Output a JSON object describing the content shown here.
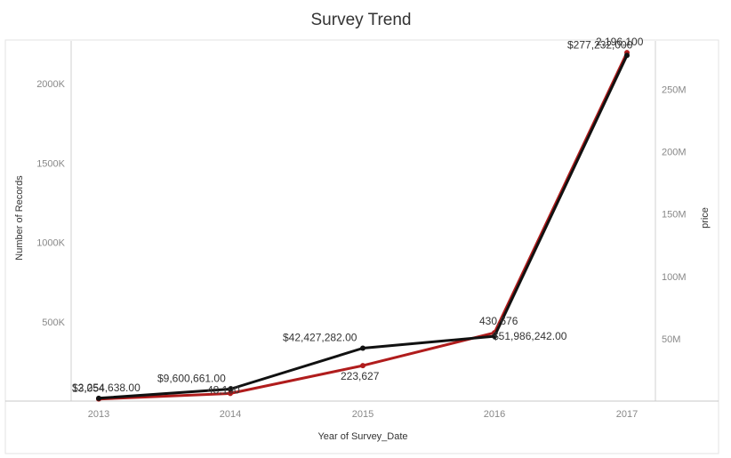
{
  "chart_data": {
    "type": "line",
    "title": "Survey Trend",
    "xlabel": "Year of Survey_Date",
    "ylabel_left": "Number of Records",
    "ylabel_right": "price",
    "categories": [
      "2013",
      "2014",
      "2015",
      "2016",
      "2017"
    ],
    "left_axis": {
      "min": 0,
      "max": 2270000,
      "ticks": [
        500000,
        1000000,
        1500000,
        2000000
      ],
      "tick_labels": [
        "500K",
        "1000K",
        "1500K",
        "2000K"
      ]
    },
    "right_axis": {
      "min": 0,
      "max": 286000000,
      "ticks": [
        50000000,
        100000000,
        150000000,
        200000000,
        250000000
      ],
      "tick_labels": [
        "50M",
        "100M",
        "150M",
        "200M",
        "250M"
      ]
    },
    "series": [
      {
        "axis": "left",
        "color": "#b01c1c",
        "values": [
          13054,
          48190,
          223627,
          430676,
          2196100
        ],
        "labels": [
          "13,054",
          "48,190",
          "223,627",
          "430,676",
          "2,196,100"
        ]
      },
      {
        "axis": "right",
        "color": "#111111",
        "values": [
          2254638,
          9600661,
          42427282,
          51986242,
          277232000
        ],
        "labels": [
          "$2,254,638.00",
          "$9,600,661.00",
          "$42,427,282.00",
          "$51,986,242.00",
          "$277,232,000"
        ]
      }
    ],
    "grid": false,
    "legend": "none"
  }
}
